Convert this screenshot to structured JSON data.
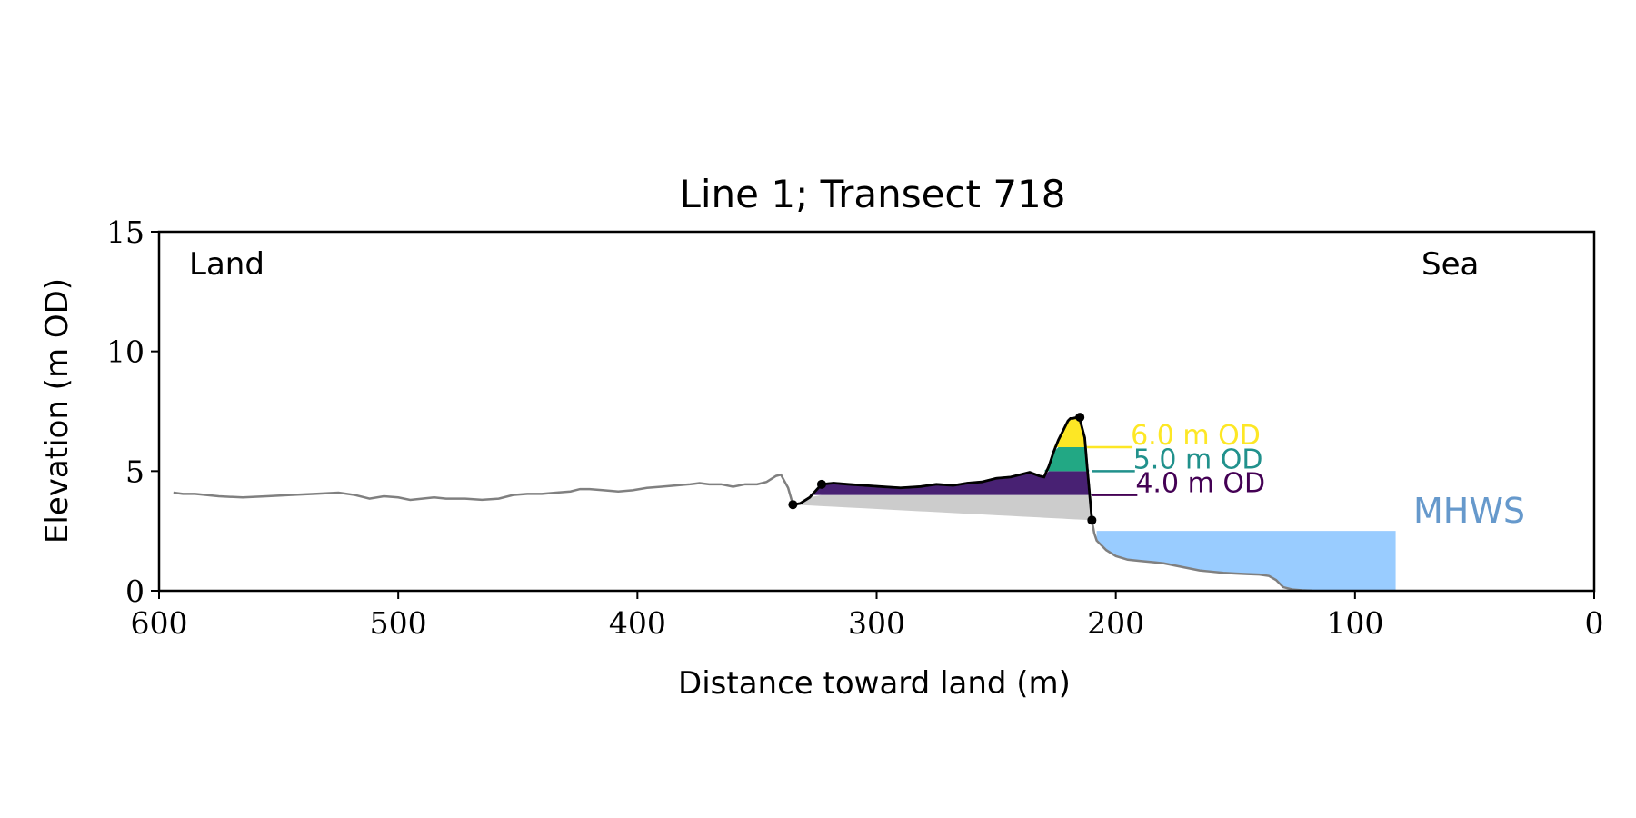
{
  "chart_data": {
    "type": "area",
    "title": "Line 1; Transect 718",
    "xlabel": "Distance toward land (m)",
    "ylabel": "Elevation (m OD)",
    "xlim": [
      600,
      0
    ],
    "ylim": [
      0,
      15
    ],
    "x_ticks": [
      600,
      500,
      400,
      300,
      200,
      100,
      0
    ],
    "y_ticks": [
      0,
      5,
      10,
      15
    ],
    "grid": false,
    "corner_labels": {
      "left": "Land",
      "right": "Sea"
    },
    "mhws": {
      "label": "MHWS",
      "value": 2.5,
      "x_from": 208,
      "x_to": 83,
      "color": "#99ccff",
      "label_color": "#6699cc"
    },
    "profile": {
      "color": "#808080",
      "x": [
        594,
        590,
        585,
        575,
        565,
        555,
        545,
        535,
        525,
        518,
        512,
        506,
        500,
        495,
        490,
        485,
        480,
        472,
        465,
        458,
        452,
        446,
        440,
        434,
        428,
        424,
        420,
        414,
        408,
        402,
        396,
        390,
        384,
        378,
        374,
        370,
        365,
        360,
        355,
        350,
        346,
        342,
        340,
        337,
        335,
        332,
        328,
        323,
        318,
        312,
        305,
        298,
        290,
        282,
        275,
        268,
        262,
        256,
        250,
        244,
        240,
        236,
        232,
        230,
        228,
        226,
        224,
        222,
        220,
        219,
        218,
        216,
        215,
        213,
        212,
        211,
        210,
        209,
        208,
        206,
        204,
        200,
        195,
        190,
        185,
        180,
        175,
        170,
        165,
        160,
        155,
        150,
        145,
        140,
        136,
        133,
        130,
        126,
        122,
        118
      ],
      "y": [
        4.1,
        4.05,
        4.05,
        3.95,
        3.9,
        3.95,
        4.0,
        4.05,
        4.1,
        4.0,
        3.85,
        3.95,
        3.9,
        3.8,
        3.85,
        3.9,
        3.85,
        3.85,
        3.8,
        3.85,
        4.0,
        4.05,
        4.05,
        4.1,
        4.15,
        4.25,
        4.25,
        4.2,
        4.15,
        4.2,
        4.3,
        4.35,
        4.4,
        4.45,
        4.5,
        4.45,
        4.45,
        4.35,
        4.45,
        4.45,
        4.55,
        4.8,
        4.85,
        4.3,
        3.6,
        3.65,
        3.9,
        4.45,
        4.5,
        4.45,
        4.4,
        4.35,
        4.3,
        4.35,
        4.45,
        4.4,
        4.5,
        4.55,
        4.7,
        4.75,
        4.85,
        4.95,
        4.8,
        4.75,
        5.2,
        5.8,
        6.3,
        6.7,
        7.1,
        7.2,
        7.2,
        7.25,
        7.15,
        6.4,
        5.2,
        4.1,
        2.95,
        2.4,
        2.1,
        1.9,
        1.7,
        1.45,
        1.3,
        1.25,
        1.2,
        1.15,
        1.05,
        0.95,
        0.85,
        0.8,
        0.75,
        0.72,
        0.7,
        0.68,
        0.62,
        0.45,
        0.15,
        0.05,
        0.02,
        0.0
      ]
    },
    "dune_segment": {
      "x_start": 335,
      "x_end": 210,
      "color": "#000000"
    },
    "key_points": [
      {
        "x": 335,
        "y": 3.6
      },
      {
        "x": 323,
        "y": 4.45
      },
      {
        "x": 215,
        "y": 7.25
      },
      {
        "x": 210,
        "y": 2.95
      }
    ],
    "toe_line": {
      "x": [
        335,
        210
      ],
      "y": [
        3.6,
        2.95
      ],
      "fill": "#cccccc"
    },
    "volume_bands": [
      {
        "name": "0-4",
        "lower": 0,
        "upper": 4.0,
        "color": "#cccccc"
      },
      {
        "name": "4-5",
        "lower": 4.0,
        "upper": 5.0,
        "color": "#482173"
      },
      {
        "name": "5-6",
        "lower": 5.0,
        "upper": 6.0,
        "color": "#22a884"
      },
      {
        "name": "6-max",
        "lower": 6.0,
        "upper": 99,
        "color": "#fde725"
      }
    ],
    "level_lines": [
      {
        "label": "6.0 m OD",
        "value": 6.0,
        "x_from": 212,
        "x_to": 193,
        "color": "#fde725"
      },
      {
        "label": "5.0 m OD",
        "value": 5.0,
        "x_from": 210,
        "x_to": 192,
        "color": "#21918c"
      },
      {
        "label": "4.0 m OD",
        "value": 4.0,
        "x_from": 210,
        "x_to": 191,
        "color": "#440154"
      }
    ]
  }
}
